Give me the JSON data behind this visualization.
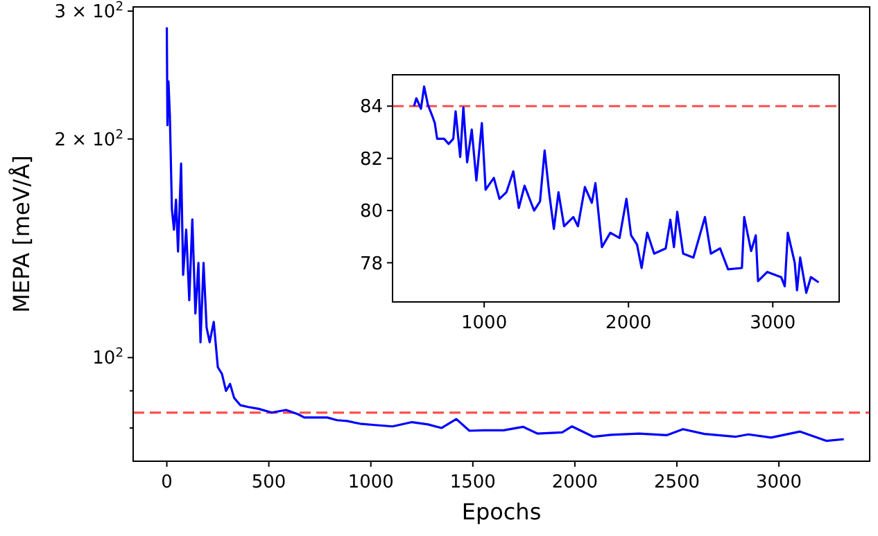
{
  "chart_data": [
    {
      "type": "line",
      "xlabel": "Epochs",
      "ylabel": "MEPA [meV/Å]",
      "log": "y",
      "xlim": [
        -165,
        3445
      ],
      "ylim": [
        72,
        304
      ],
      "xticks": [
        0,
        500,
        1000,
        1500,
        2000,
        2500,
        3000
      ],
      "yticks": [
        {
          "value": 300,
          "label": "3 × 10$^{2}$"
        },
        {
          "value": 200,
          "label": "2 × 10$^{2}$"
        },
        {
          "value": 100,
          "label": "10$^{2}$"
        },
        {
          "value": 90,
          "label": null
        },
        {
          "value": 80,
          "label": null
        }
      ],
      "ref_lines": [
        {
          "axis": "y",
          "value": 84,
          "color": "#ff4d4d",
          "line_style": "dashed"
        }
      ],
      "series": [
        {
          "color": "#0000ff",
          "x": [
            0,
            3,
            8,
            15,
            25,
            35,
            45,
            55,
            70,
            80,
            95,
            110,
            125,
            140,
            155,
            165,
            180,
            195,
            210,
            230,
            250,
            270,
            290,
            310,
            330,
            360,
            400,
            450,
            514,
            584,
            642,
            674,
            722,
            786,
            834,
            882,
            946,
            1010,
            1106,
            1202,
            1280,
            1346,
            1419,
            1483,
            1554,
            1650,
            1746,
            1816,
            1938,
            1986,
            2091,
            2178,
            2315,
            2450,
            2530,
            2635,
            2786,
            2850,
            2962,
            3104,
            3232,
            3318
          ],
          "values": [
            285,
            209,
            240,
            215,
            160,
            150,
            165,
            140,
            185,
            130,
            150,
            120,
            155,
            115,
            135,
            105,
            135,
            110,
            105,
            112,
            97,
            95,
            90,
            92,
            88,
            86,
            85.5,
            85,
            84,
            84.7,
            83.6,
            82.7,
            82.7,
            82.7,
            82,
            81.8,
            81.1,
            80.8,
            80.4,
            81.5,
            80.9,
            80,
            82.3,
            79.3,
            79.4,
            79.4,
            80.3,
            78.6,
            78.9,
            80.4,
            77.8,
            78.3,
            78.6,
            78.2,
            79.7,
            78.5,
            77.8,
            78.4,
            77.6,
            79.1,
            76.8,
            77.2
          ]
        }
      ]
    },
    {
      "type": "line",
      "xlim": [
        365,
        3460
      ],
      "ylim": [
        76.5,
        85.2
      ],
      "xticks": [
        1000,
        2000,
        3000
      ],
      "yticks": [
        78,
        80,
        82,
        84
      ],
      "ref_lines": [
        {
          "axis": "y",
          "value": 84,
          "color": "#ff4d4d",
          "line_style": "dashed"
        }
      ],
      "series": [
        {
          "color": "#0000ff",
          "x": [
            514,
            530,
            562,
            584,
            610,
            642,
            658,
            674,
            722,
            754,
            786,
            802,
            834,
            856,
            882,
            914,
            946,
            984,
            1010,
            1067,
            1106,
            1154,
            1202,
            1240,
            1280,
            1346,
            1387,
            1419,
            1451,
            1483,
            1515,
            1554,
            1618,
            1650,
            1698,
            1746,
            1771,
            1816,
            1874,
            1938,
            1986,
            2018,
            2059,
            2091,
            2130,
            2178,
            2258,
            2290,
            2315,
            2338,
            2379,
            2450,
            2530,
            2571,
            2635,
            2690,
            2786,
            2802,
            2850,
            2882,
            2898,
            2962,
            3058,
            3083,
            3104,
            3152,
            3168,
            3190,
            3232,
            3264,
            3318
          ],
          "values": [
            84.0,
            84.3,
            83.9,
            84.75,
            84.05,
            83.6,
            83.35,
            82.75,
            82.75,
            82.55,
            82.75,
            83.8,
            82.05,
            83.95,
            81.85,
            83.1,
            81.15,
            83.35,
            80.8,
            81.25,
            80.45,
            80.7,
            81.5,
            80.1,
            80.95,
            80.0,
            80.35,
            82.3,
            80.65,
            79.3,
            80.7,
            79.4,
            79.75,
            79.4,
            80.9,
            80.3,
            81.05,
            78.6,
            79.15,
            78.95,
            80.45,
            79.05,
            78.7,
            77.8,
            79.15,
            78.35,
            78.55,
            79.65,
            78.6,
            79.95,
            78.35,
            78.2,
            79.75,
            78.35,
            78.55,
            77.75,
            77.8,
            79.75,
            78.45,
            79.05,
            77.3,
            77.65,
            77.45,
            77.1,
            79.15,
            78.0,
            76.95,
            78.2,
            76.85,
            77.45,
            77.25
          ]
        }
      ]
    }
  ]
}
